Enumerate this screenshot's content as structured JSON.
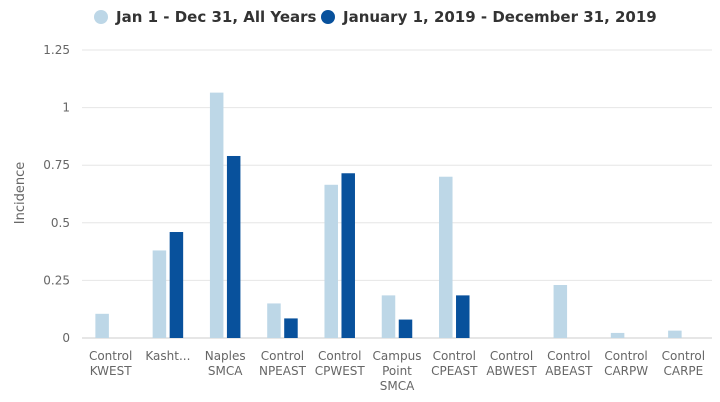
{
  "chart_data": {
    "type": "bar",
    "title": "",
    "xlabel": "",
    "ylabel": "Incidence",
    "ylim": [
      0,
      1.25
    ],
    "yticks": [
      "0",
      "0.25",
      "0.5",
      "0.75",
      "1",
      "1.25"
    ],
    "grid": true,
    "legend_position": "top-left",
    "categories": [
      [
        "Control",
        "KWEST"
      ],
      [
        "Kasht..."
      ],
      [
        "Naples",
        "SMCA"
      ],
      [
        "Control",
        "NPEAST"
      ],
      [
        "Control",
        "CPWEST"
      ],
      [
        "Campus",
        "Point",
        "SMCA"
      ],
      [
        "Control",
        "CPEAST"
      ],
      [
        "Control",
        "ABWEST"
      ],
      [
        "Control",
        "ABEAST"
      ],
      [
        "Control",
        "CARPW"
      ],
      [
        "Control",
        "CARPE"
      ]
    ],
    "series": [
      {
        "name": "Jan 1 - Dec 31, All Years",
        "color": "#bdd7e7",
        "values": [
          0.105,
          0.38,
          1.065,
          0.15,
          0.665,
          0.185,
          0.7,
          null,
          0.23,
          0.022,
          0.032
        ]
      },
      {
        "name": "January 1, 2019 - December 31, 2019",
        "color": "#08519c",
        "values": [
          null,
          0.46,
          0.79,
          0.085,
          0.715,
          0.08,
          0.185,
          null,
          null,
          null,
          null
        ]
      }
    ]
  }
}
